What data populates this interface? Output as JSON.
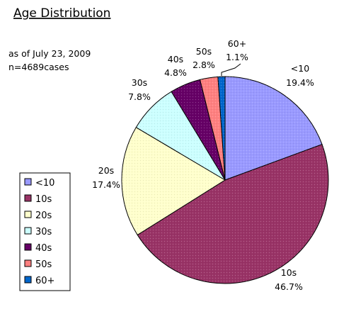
{
  "chart_data": {
    "type": "pie",
    "title": "Age Distribution",
    "annotations": [
      "as of July 23, 2009",
      "n=4689cases"
    ],
    "legend_position": "bottom-left",
    "slices": [
      {
        "label": "<10",
        "value": 19.4,
        "value_text": "19.4%",
        "color": "#9999FF"
      },
      {
        "label": "10s",
        "value": 46.7,
        "value_text": "46.7%",
        "color": "#993366"
      },
      {
        "label": "20s",
        "value": 17.4,
        "value_text": "17.4%",
        "color": "#FFFFCC"
      },
      {
        "label": "30s",
        "value": 7.8,
        "value_text": "7.8%",
        "color": "#CCFFFF"
      },
      {
        "label": "40s",
        "value": 4.8,
        "value_text": "4.8%",
        "color": "#660066"
      },
      {
        "label": "50s",
        "value": 2.8,
        "value_text": "2.8%",
        "color": "#FF8080"
      },
      {
        "label": "60+",
        "value": 1.1,
        "value_text": "1.1%",
        "color": "#0066CC"
      }
    ]
  }
}
